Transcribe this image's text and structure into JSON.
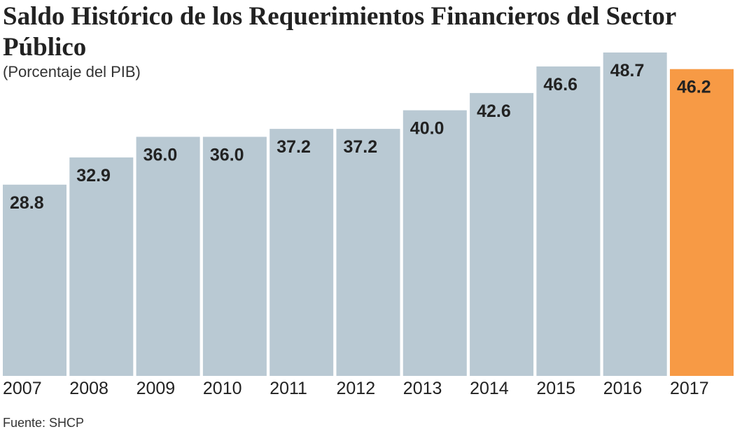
{
  "chart_data": {
    "type": "bar",
    "title": "Saldo Histórico de los Requerimientos Financieros del Sector Público",
    "subtitle": "(Porcentaje del PIB)",
    "source": "Fuente: SHCP",
    "categories": [
      "2007",
      "2008",
      "2009",
      "2010",
      "2011",
      "2012",
      "2013",
      "2014",
      "2015",
      "2016",
      "2017"
    ],
    "values": [
      28.8,
      32.9,
      36.0,
      36.0,
      37.2,
      37.2,
      40.0,
      42.6,
      46.6,
      48.7,
      46.2
    ],
    "value_labels": [
      "28.8",
      "32.9",
      "36.0",
      "36.0",
      "37.2",
      "37.2",
      "40.0",
      "42.6",
      "46.6",
      "48.7",
      "46.2"
    ],
    "colors": [
      "#b9c9d3",
      "#b9c9d3",
      "#b9c9d3",
      "#b9c9d3",
      "#b9c9d3",
      "#b9c9d3",
      "#b9c9d3",
      "#b9c9d3",
      "#b9c9d3",
      "#b9c9d3",
      "#f79a45"
    ]
  }
}
